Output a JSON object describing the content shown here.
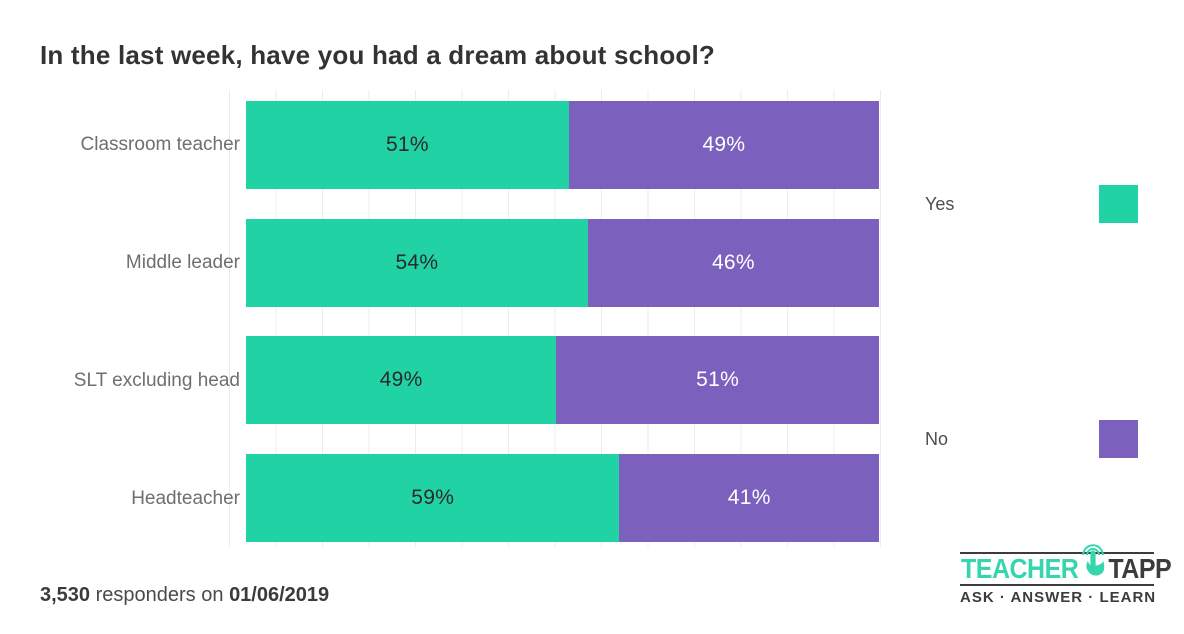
{
  "title": "In the last week, have you had a dream about school?",
  "chart_data": {
    "type": "bar",
    "orientation": "horizontal-stacked",
    "title": "In the last week, have you had a dream about school?",
    "categories": [
      "Classroom teacher",
      "Middle leader",
      "SLT excluding head",
      "Headteacher"
    ],
    "series": [
      {
        "name": "Yes",
        "color": "#20d2a4",
        "values": [
          51,
          54,
          49,
          59
        ]
      },
      {
        "name": "No",
        "color": "#7b61bd",
        "values": [
          49,
          46,
          51,
          41
        ]
      }
    ],
    "value_format": "percent",
    "xlim": [
      0,
      100
    ],
    "grid": "vertical light gray, no axis tick labels",
    "legend_position": "right"
  },
  "legend": {
    "yes_label": "Yes",
    "no_label": "No"
  },
  "footer": {
    "count": "3,530",
    "middle": "responders on",
    "date": "01/06/2019"
  },
  "logo": {
    "teacher": "TEACHER",
    "tapp": "TAPP",
    "tagline": "ASK · ANSWER · LEARN"
  },
  "colors": {
    "yes": "#20d2a4",
    "no": "#7b61bd",
    "grid": "#ececec",
    "category_label": "#6f6f6f",
    "title_text": "#333333",
    "pct_on_yes": "#2a2a2a",
    "pct_on_no": "#ffffff",
    "logo_dark": "#3c3c3c",
    "logo_teal": "#35d6ae"
  }
}
